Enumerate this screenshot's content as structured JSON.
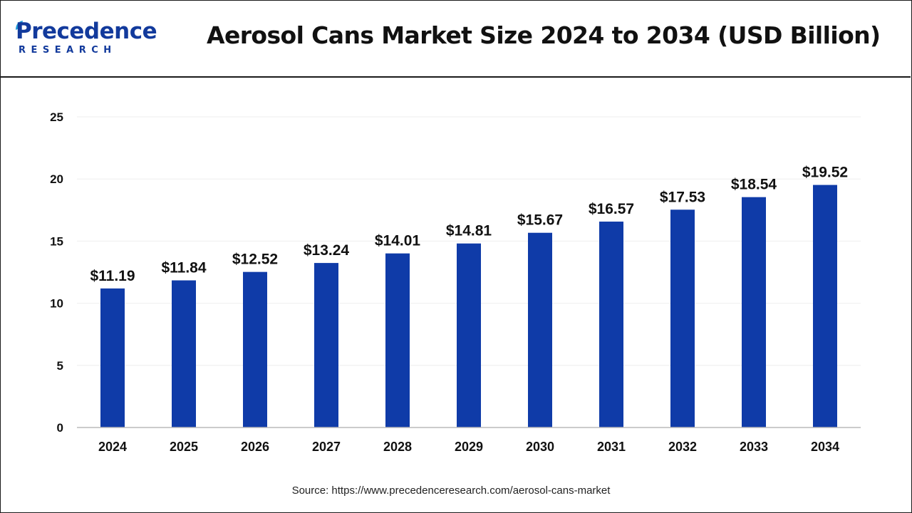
{
  "header": {
    "logo_word": "Precedence",
    "logo_sub": "RESEARCH",
    "title": "Aerosol Cans Market Size 2024 to 2034 (USD Billion)"
  },
  "source": "Source: https://www.precedenceresearch.com/aerosol-cans-market",
  "colors": {
    "bar": "#0f3ba8",
    "brand": "#123a9c",
    "grid": "#eeeeee",
    "axis": "#bbbbbb"
  },
  "chart_data": {
    "type": "bar",
    "categories": [
      "2024",
      "2025",
      "2026",
      "2027",
      "2028",
      "2029",
      "2030",
      "2031",
      "2032",
      "2033",
      "2034"
    ],
    "values": [
      11.19,
      11.84,
      12.52,
      13.24,
      14.01,
      14.81,
      15.67,
      16.57,
      17.53,
      18.54,
      19.52
    ],
    "labels": [
      "$11.19",
      "$11.84",
      "$12.52",
      "$13.24",
      "$14.01",
      "$14.81",
      "$15.67",
      "$16.57",
      "$17.53",
      "$18.54",
      "$19.52"
    ],
    "ylim": [
      0,
      25
    ],
    "yticks": [
      0,
      5,
      10,
      15,
      20,
      25
    ],
    "xlabel": "",
    "ylabel": "",
    "grid": true,
    "legend": "none"
  }
}
